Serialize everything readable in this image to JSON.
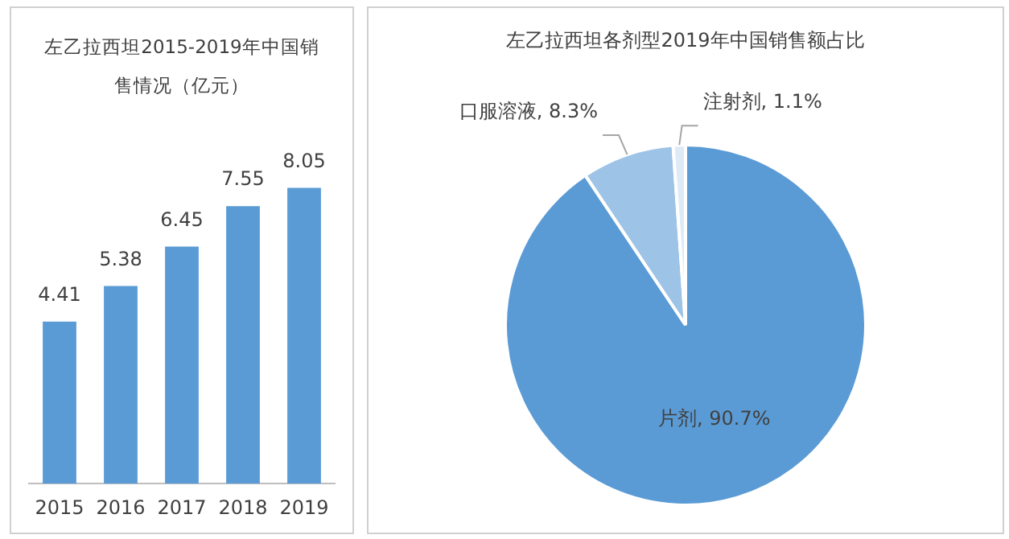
{
  "chart_data": [
    {
      "type": "bar",
      "title": "左乙拉西坦2015-2019年中国销售情况（亿元）",
      "categories": [
        "2015",
        "2016",
        "2017",
        "2018",
        "2019"
      ],
      "values": [
        4.41,
        5.38,
        6.45,
        7.55,
        8.05
      ],
      "color": "#5b9bd5",
      "data_labels": true,
      "grid": false,
      "tick_labels": "x"
    },
    {
      "type": "pie",
      "title": "左乙拉西坦各剂型2019年中国销售额占比",
      "categories": [
        "片剂",
        "口服溶液",
        "注射剂"
      ],
      "values": [
        90.7,
        8.3,
        1.1
      ],
      "colors": [
        "#5b9bd5",
        "#9dc3e6",
        "#deebf7"
      ],
      "value_labels": [
        "90.7%",
        "8.3%",
        "1.1%"
      ]
    }
  ]
}
